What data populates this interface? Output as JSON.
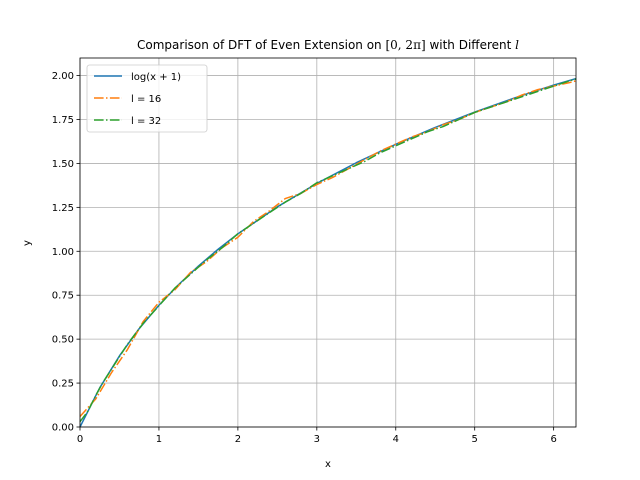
{
  "chart_data": {
    "type": "line",
    "title": "Comparison of DFT of Even Extension on [0, 2π] with Different l",
    "title_parts": {
      "prefix": "Comparison of DFT of Even Extension on ",
      "interval": "[0, 2π]",
      "middle": " with Different ",
      "variable": "l"
    },
    "xlabel": "x",
    "ylabel": "y",
    "xlim": [
      0,
      6.2832
    ],
    "ylim": [
      0,
      2.1
    ],
    "x_ticks": [
      0,
      1,
      2,
      3,
      4,
      5,
      6
    ],
    "x_tick_labels": [
      "0",
      "1",
      "2",
      "3",
      "4",
      "5",
      "6"
    ],
    "y_ticks": [
      0,
      0.25,
      0.5,
      0.75,
      1.0,
      1.25,
      1.5,
      1.75,
      2.0
    ],
    "y_tick_labels": [
      "0.00",
      "0.25",
      "0.50",
      "0.75",
      "1.00",
      "1.25",
      "1.50",
      "1.75",
      "2.00"
    ],
    "grid": true,
    "legend_position": "upper-left",
    "series": [
      {
        "name": "log(x + 1)",
        "color": "#1f77b4",
        "style": "solid",
        "x": [
          0,
          0.25,
          0.5,
          0.75,
          1.0,
          1.25,
          1.5,
          1.75,
          2.0,
          2.5,
          3.0,
          3.5,
          4.0,
          4.5,
          5.0,
          5.5,
          6.0,
          6.2832
        ],
        "y": [
          0,
          0.223,
          0.405,
          0.56,
          0.693,
          0.811,
          0.916,
          1.012,
          1.099,
          1.253,
          1.386,
          1.504,
          1.609,
          1.705,
          1.792,
          1.872,
          1.946,
          1.983
        ]
      },
      {
        "name": "l = 16",
        "color": "#ff7f0e",
        "style": "dashdot",
        "x": [
          0,
          0.2,
          0.4,
          0.6,
          0.8,
          1.0,
          1.2,
          1.4,
          1.6,
          1.8,
          2.0,
          2.2,
          2.4,
          2.6,
          2.8,
          3.0,
          3.2,
          3.4,
          3.6,
          3.8,
          4.0,
          4.2,
          4.4,
          4.6,
          4.8,
          5.0,
          5.2,
          5.4,
          5.6,
          5.8,
          6.0,
          6.2,
          6.2832
        ],
        "y": [
          0.06,
          0.16,
          0.31,
          0.44,
          0.6,
          0.71,
          0.78,
          0.88,
          0.94,
          1.02,
          1.08,
          1.17,
          1.23,
          1.3,
          1.33,
          1.38,
          1.42,
          1.47,
          1.52,
          1.57,
          1.61,
          1.65,
          1.68,
          1.72,
          1.75,
          1.79,
          1.82,
          1.85,
          1.89,
          1.92,
          1.94,
          1.96,
          1.97
        ]
      },
      {
        "name": "l = 32",
        "color": "#2ca02c",
        "style": "dashdot",
        "x": [
          0,
          0.1,
          0.2,
          0.3,
          0.4,
          0.5,
          0.6,
          0.7,
          0.8,
          0.9,
          1.0,
          1.2,
          1.4,
          1.6,
          1.8,
          2.0,
          2.2,
          2.4,
          2.6,
          2.8,
          3.0,
          3.2,
          3.4,
          3.6,
          3.8,
          4.0,
          4.2,
          4.4,
          4.6,
          4.8,
          5.0,
          5.2,
          5.4,
          5.6,
          5.8,
          6.0,
          6.2,
          6.2832
        ],
        "y": [
          0.03,
          0.09,
          0.18,
          0.26,
          0.33,
          0.4,
          0.47,
          0.53,
          0.59,
          0.64,
          0.69,
          0.79,
          0.87,
          0.95,
          1.02,
          1.1,
          1.16,
          1.22,
          1.28,
          1.33,
          1.39,
          1.43,
          1.47,
          1.51,
          1.56,
          1.6,
          1.64,
          1.68,
          1.71,
          1.75,
          1.79,
          1.82,
          1.85,
          1.88,
          1.91,
          1.94,
          1.97,
          1.98
        ]
      }
    ]
  }
}
